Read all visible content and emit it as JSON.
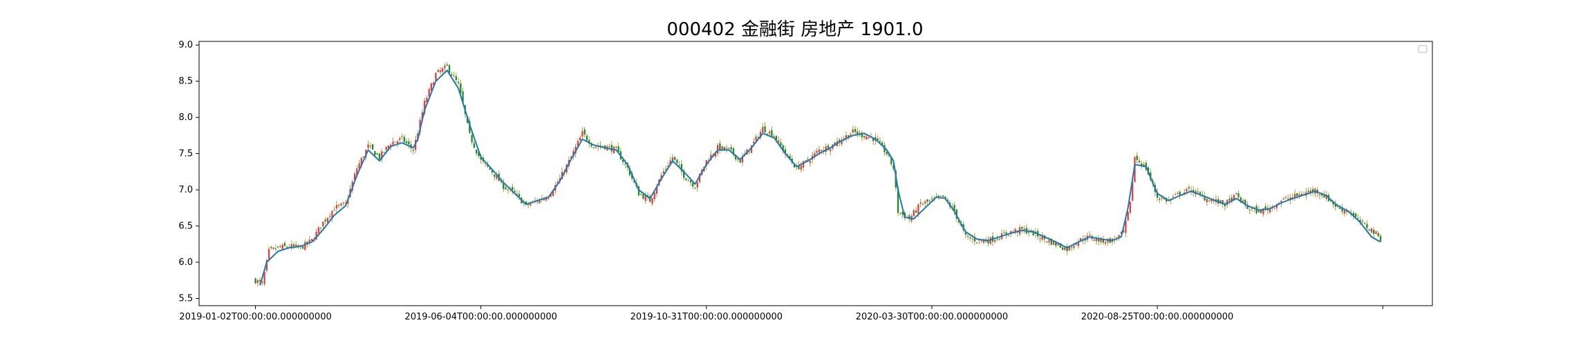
{
  "chart_data": {
    "type": "candlestick",
    "title": "000402 金融街 房地产 1901.0",
    "xlabel": "",
    "ylabel": "",
    "ylim": [
      5.4,
      9.05
    ],
    "y_ticks": [
      "5.5",
      "6.0",
      "6.5",
      "7.0",
      "7.5",
      "8.0",
      "8.5",
      "9.0"
    ],
    "x_ticks": [
      {
        "index": 0,
        "label": "2019-01-02T00:00:00.000000000"
      },
      {
        "index": 100,
        "label": "2019-06-04T00:00:00.000000000"
      },
      {
        "index": 200,
        "label": "2019-10-31T00:00:00.000000000"
      },
      {
        "index": 300,
        "label": "2020-03-30T00:00:00.000000000"
      },
      {
        "index": 400,
        "label": "2020-08-25T00:00:00.000000000"
      },
      {
        "index": 500,
        "label": ""
      }
    ],
    "x_range": [
      -25,
      522
    ],
    "n_bars": 500,
    "close_path": [
      [
        0,
        5.75
      ],
      [
        3,
        5.7
      ],
      [
        6,
        6.15
      ],
      [
        10,
        6.2
      ],
      [
        15,
        6.22
      ],
      [
        20,
        6.2
      ],
      [
        25,
        6.3
      ],
      [
        30,
        6.55
      ],
      [
        35,
        6.75
      ],
      [
        40,
        6.8
      ],
      [
        45,
        7.3
      ],
      [
        50,
        7.6
      ],
      [
        55,
        7.45
      ],
      [
        60,
        7.65
      ],
      [
        65,
        7.7
      ],
      [
        70,
        7.55
      ],
      [
        72,
        7.8
      ],
      [
        75,
        8.2
      ],
      [
        80,
        8.6
      ],
      [
        85,
        8.7
      ],
      [
        90,
        8.45
      ],
      [
        95,
        7.75
      ],
      [
        100,
        7.4
      ],
      [
        105,
        7.25
      ],
      [
        110,
        7.05
      ],
      [
        115,
        6.95
      ],
      [
        120,
        6.78
      ],
      [
        125,
        6.85
      ],
      [
        130,
        6.92
      ],
      [
        135,
        7.15
      ],
      [
        140,
        7.45
      ],
      [
        145,
        7.78
      ],
      [
        150,
        7.6
      ],
      [
        155,
        7.6
      ],
      [
        160,
        7.55
      ],
      [
        165,
        7.3
      ],
      [
        170,
        6.95
      ],
      [
        175,
        6.85
      ],
      [
        180,
        7.2
      ],
      [
        185,
        7.45
      ],
      [
        190,
        7.2
      ],
      [
        195,
        7.05
      ],
      [
        200,
        7.4
      ],
      [
        205,
        7.58
      ],
      [
        210,
        7.55
      ],
      [
        215,
        7.4
      ],
      [
        220,
        7.6
      ],
      [
        225,
        7.85
      ],
      [
        230,
        7.75
      ],
      [
        235,
        7.5
      ],
      [
        240,
        7.3
      ],
      [
        245,
        7.4
      ],
      [
        250,
        7.55
      ],
      [
        255,
        7.6
      ],
      [
        260,
        7.7
      ],
      [
        265,
        7.8
      ],
      [
        270,
        7.75
      ],
      [
        275,
        7.7
      ],
      [
        280,
        7.5
      ],
      [
        283,
        7.3
      ],
      [
        285,
        6.7
      ],
      [
        290,
        6.6
      ],
      [
        295,
        6.8
      ],
      [
        300,
        6.85
      ],
      [
        305,
        6.9
      ],
      [
        310,
        6.7
      ],
      [
        315,
        6.35
      ],
      [
        320,
        6.3
      ],
      [
        325,
        6.3
      ],
      [
        330,
        6.35
      ],
      [
        335,
        6.42
      ],
      [
        340,
        6.45
      ],
      [
        345,
        6.4
      ],
      [
        350,
        6.32
      ],
      [
        355,
        6.25
      ],
      [
        360,
        6.18
      ],
      [
        365,
        6.3
      ],
      [
        370,
        6.35
      ],
      [
        375,
        6.3
      ],
      [
        380,
        6.3
      ],
      [
        385,
        6.4
      ],
      [
        388,
        6.8
      ],
      [
        390,
        7.45
      ],
      [
        395,
        7.3
      ],
      [
        400,
        6.9
      ],
      [
        405,
        6.85
      ],
      [
        410,
        6.95
      ],
      [
        415,
        7.0
      ],
      [
        420,
        6.9
      ],
      [
        425,
        6.85
      ],
      [
        430,
        6.8
      ],
      [
        435,
        6.92
      ],
      [
        440,
        6.75
      ],
      [
        445,
        6.7
      ],
      [
        450,
        6.75
      ],
      [
        455,
        6.85
      ],
      [
        460,
        6.9
      ],
      [
        465,
        6.95
      ],
      [
        470,
        7.0
      ],
      [
        475,
        6.9
      ],
      [
        480,
        6.75
      ],
      [
        485,
        6.7
      ],
      [
        490,
        6.55
      ],
      [
        495,
        6.45
      ],
      [
        499,
        6.33
      ]
    ],
    "ma_path": [
      [
        2,
        5.68
      ],
      [
        5,
        6.0
      ],
      [
        10,
        6.15
      ],
      [
        15,
        6.2
      ],
      [
        20,
        6.22
      ],
      [
        25,
        6.28
      ],
      [
        30,
        6.45
      ],
      [
        35,
        6.65
      ],
      [
        40,
        6.78
      ],
      [
        45,
        7.2
      ],
      [
        50,
        7.55
      ],
      [
        55,
        7.4
      ],
      [
        60,
        7.6
      ],
      [
        65,
        7.65
      ],
      [
        70,
        7.58
      ],
      [
        72,
        7.7
      ],
      [
        75,
        8.1
      ],
      [
        80,
        8.5
      ],
      [
        85,
        8.65
      ],
      [
        90,
        8.4
      ],
      [
        95,
        7.9
      ],
      [
        100,
        7.45
      ],
      [
        105,
        7.28
      ],
      [
        110,
        7.1
      ],
      [
        115,
        6.95
      ],
      [
        120,
        6.8
      ],
      [
        125,
        6.85
      ],
      [
        130,
        6.9
      ],
      [
        135,
        7.12
      ],
      [
        140,
        7.42
      ],
      [
        145,
        7.7
      ],
      [
        150,
        7.62
      ],
      [
        155,
        7.58
      ],
      [
        160,
        7.55
      ],
      [
        165,
        7.35
      ],
      [
        170,
        7.0
      ],
      [
        175,
        6.88
      ],
      [
        180,
        7.15
      ],
      [
        185,
        7.4
      ],
      [
        190,
        7.25
      ],
      [
        195,
        7.08
      ],
      [
        200,
        7.35
      ],
      [
        205,
        7.55
      ],
      [
        210,
        7.55
      ],
      [
        215,
        7.42
      ],
      [
        220,
        7.58
      ],
      [
        225,
        7.78
      ],
      [
        230,
        7.72
      ],
      [
        235,
        7.5
      ],
      [
        240,
        7.32
      ],
      [
        245,
        7.4
      ],
      [
        250,
        7.5
      ],
      [
        255,
        7.58
      ],
      [
        260,
        7.68
      ],
      [
        265,
        7.75
      ],
      [
        270,
        7.78
      ],
      [
        275,
        7.7
      ],
      [
        280,
        7.55
      ],
      [
        283,
        7.4
      ],
      [
        285,
        7.0
      ],
      [
        288,
        6.62
      ],
      [
        292,
        6.6
      ],
      [
        297,
        6.75
      ],
      [
        302,
        6.9
      ],
      [
        306,
        6.88
      ],
      [
        310,
        6.7
      ],
      [
        315,
        6.42
      ],
      [
        320,
        6.32
      ],
      [
        325,
        6.3
      ],
      [
        330,
        6.35
      ],
      [
        335,
        6.4
      ],
      [
        340,
        6.44
      ],
      [
        345,
        6.42
      ],
      [
        350,
        6.35
      ],
      [
        355,
        6.28
      ],
      [
        360,
        6.2
      ],
      [
        365,
        6.28
      ],
      [
        370,
        6.35
      ],
      [
        375,
        6.32
      ],
      [
        380,
        6.3
      ],
      [
        384,
        6.35
      ],
      [
        387,
        6.75
      ],
      [
        390,
        7.35
      ],
      [
        395,
        7.32
      ],
      [
        400,
        6.95
      ],
      [
        405,
        6.85
      ],
      [
        410,
        6.92
      ],
      [
        415,
        6.98
      ],
      [
        420,
        6.92
      ],
      [
        425,
        6.86
      ],
      [
        430,
        6.8
      ],
      [
        435,
        6.88
      ],
      [
        440,
        6.78
      ],
      [
        445,
        6.72
      ],
      [
        450,
        6.74
      ],
      [
        455,
        6.82
      ],
      [
        460,
        6.88
      ],
      [
        465,
        6.93
      ],
      [
        470,
        6.98
      ],
      [
        475,
        6.92
      ],
      [
        480,
        6.78
      ],
      [
        485,
        6.7
      ],
      [
        490,
        6.55
      ],
      [
        495,
        6.35
      ],
      [
        499,
        6.28
      ]
    ],
    "up_color": "#e8383d",
    "down_color": "#1a8c1a",
    "wick_color": "#a0a03c",
    "ma_color": "#1f77b4",
    "grid": false,
    "legend": "top-right"
  }
}
